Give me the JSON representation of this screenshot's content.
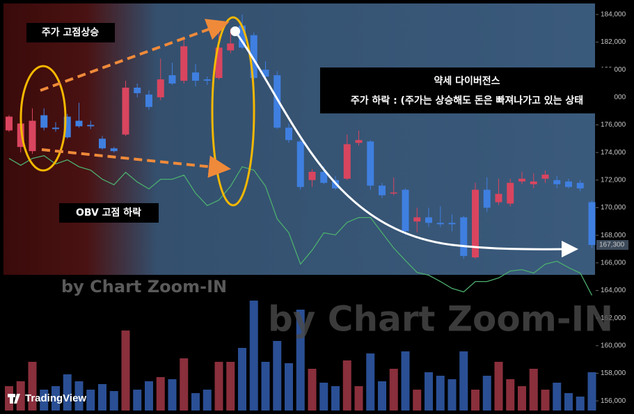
{
  "chart_data": {
    "type": "candlestick",
    "open": [
      175600,
      174400,
      174100,
      176700,
      175800,
      176600,
      176300,
      176000,
      175000,
      174300,
      175300,
      178700,
      178200,
      178000,
      179600,
      179200,
      179800,
      179300,
      179400,
      181400,
      183200,
      182500,
      180000,
      179600,
      175800,
      174800,
      172000,
      172600,
      172000,
      172100,
      174700,
      174800,
      171600,
      171100,
      171300,
      169000,
      169300,
      168900,
      168900,
      169300,
      166400,
      171300,
      170400,
      170300,
      171900,
      171700,
      172100,
      172000,
      171900,
      171800,
      170400
    ],
    "high": [
      176700,
      176600,
      177200,
      177200,
      176200,
      176800,
      177600,
      176300,
      175200,
      174400,
      179200,
      179000,
      178500,
      180800,
      180500,
      182200,
      180400,
      179500,
      182800,
      183000,
      184000,
      182700,
      180600,
      179900,
      176100,
      175000,
      172800,
      173000,
      172300,
      175300,
      175600,
      174900,
      171800,
      172200,
      171400,
      170000,
      170000,
      170100,
      169500,
      169400,
      171800,
      172200,
      172100,
      172100,
      172600,
      172500,
      172700,
      172300,
      172100,
      172000,
      170500
    ],
    "low": [
      175500,
      174000,
      173900,
      175600,
      175500,
      175000,
      175800,
      175700,
      174200,
      174000,
      175200,
      178000,
      177100,
      177800,
      178900,
      179000,
      178800,
      178900,
      179300,
      181200,
      181500,
      179300,
      179200,
      175700,
      174700,
      171300,
      171500,
      171700,
      171300,
      172000,
      174500,
      171300,
      170700,
      170900,
      168000,
      168200,
      168600,
      168600,
      168300,
      166300,
      166300,
      169700,
      170200,
      170100,
      171700,
      171400,
      171800,
      171400,
      171400,
      171200,
      167100
    ],
    "close": [
      176600,
      176100,
      176300,
      175800,
      175700,
      175100,
      175900,
      175900,
      174300,
      174100,
      178700,
      178300,
      177300,
      179300,
      179000,
      181700,
      179200,
      179200,
      181600,
      181900,
      181600,
      179400,
      179500,
      175800,
      174900,
      171500,
      172600,
      171800,
      171400,
      174600,
      174900,
      171600,
      170900,
      171100,
      168300,
      169300,
      168900,
      168800,
      168800,
      166500,
      171300,
      170000,
      171000,
      171800,
      172100,
      171900,
      172400,
      171700,
      171500,
      171400,
      167300
    ],
    "up_color": "#d9455f",
    "down_color": "#3f7fe0",
    "ylim": [
      155300,
      184800
    ],
    "yticks": [
      {
        "value": 156000,
        "label": "156,000"
      },
      {
        "value": 158000,
        "label": "158,000"
      },
      {
        "value": 160000,
        "label": "160,000"
      },
      {
        "value": 162000,
        "label": "162,000"
      },
      {
        "value": 164000,
        "label": "164,000"
      },
      {
        "value": 166000,
        "label": "166,000"
      },
      {
        "value": 168000,
        "label": "168,000"
      },
      {
        "value": 170000,
        "label": "170,000"
      },
      {
        "value": 172000,
        "label": "172,000"
      },
      {
        "value": 174000,
        "label": "174,000"
      },
      {
        "value": 176000,
        "label": "176,000"
      },
      {
        "value": 178000,
        "label": "178,000"
      },
      {
        "value": 180000,
        "label": "180,000"
      },
      {
        "value": 182000,
        "label": "182,000"
      },
      {
        "value": 184000,
        "label": "184,000"
      }
    ],
    "last_price": {
      "value": 167300,
      "label": "167,300"
    },
    "obv": {
      "color": "#4caf6e",
      "values": [
        173570,
        173070,
        173570,
        173770,
        173170,
        173470,
        172970,
        172720,
        172060,
        171660,
        172560,
        171860,
        171360,
        172060,
        172060,
        172360,
        171050,
        170150,
        170550,
        171560,
        172970,
        172720,
        171560,
        169190,
        168180,
        165910,
        166920,
        168180,
        168030,
        168940,
        169290,
        169290,
        168180,
        167070,
        166170,
        165310,
        165110,
        164650,
        164150,
        163900,
        164650,
        164650,
        164910,
        165410,
        165510,
        165260,
        165910,
        166120,
        165660,
        165260,
        163650
      ]
    },
    "volume": {
      "ylim": [
        0,
        160
      ],
      "values": [
        35,
        42,
        70,
        30,
        35,
        52,
        42,
        30,
        38,
        28,
        115,
        30,
        42,
        48,
        45,
        75,
        25,
        30,
        70,
        70,
        90,
        158,
        70,
        100,
        68,
        145,
        60,
        40,
        35,
        72,
        35,
        82,
        42,
        60,
        85,
        30,
        55,
        50,
        45,
        85,
        30,
        50,
        70,
        45,
        35,
        60,
        30,
        40,
        25,
        20,
        55
      ]
    },
    "annotations": {
      "price_high": "주가 고점상승",
      "obv_high": "OBV 고점 하락",
      "divergence_title": "약세 다이버전스",
      "divergence_text": "주가 하락 : (주가는 상승해도 돈은 빠져나가고 있는 상태"
    },
    "watermark": "by Chart Zoom-IN",
    "logo": "TradingView"
  }
}
